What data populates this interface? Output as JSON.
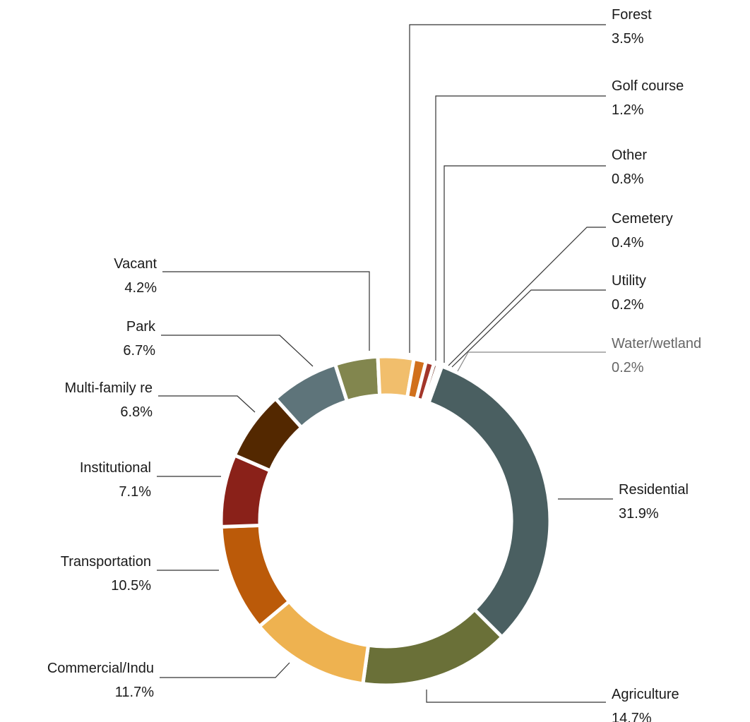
{
  "chart_data": {
    "type": "pie",
    "donut": true,
    "title": "",
    "slices": [
      {
        "label": "Residential",
        "value": 31.9,
        "pct": "31.9%",
        "color": "#4a5f61"
      },
      {
        "label": "Agriculture",
        "value": 14.7,
        "pct": "14.7%",
        "color": "#6a7038"
      },
      {
        "label": "Commercial/Indu",
        "value": 11.7,
        "pct": "11.7%",
        "color": "#eeb250"
      },
      {
        "label": "Transportation",
        "value": 10.5,
        "pct": "10.5%",
        "color": "#bb5a09"
      },
      {
        "label": "Institutional",
        "value": 7.1,
        "pct": "7.1%",
        "color": "#8a2119"
      },
      {
        "label": "Multi-family re",
        "value": 6.8,
        "pct": "6.8%",
        "color": "#532800"
      },
      {
        "label": "Park",
        "value": 6.7,
        "pct": "6.7%",
        "color": "#5e747a"
      },
      {
        "label": "Vacant",
        "value": 4.2,
        "pct": "4.2%",
        "color": "#82864e"
      },
      {
        "label": "Forest",
        "value": 3.5,
        "pct": "3.5%",
        "color": "#f1be6c"
      },
      {
        "label": "Golf course",
        "value": 1.2,
        "pct": "1.2%",
        "color": "#d1701c"
      },
      {
        "label": "Other",
        "value": 0.8,
        "pct": "0.8%",
        "color": "#a3362a"
      },
      {
        "label": "Cemetery",
        "value": 0.4,
        "pct": "0.4%",
        "color": "#6b2a1a"
      },
      {
        "label": "Utility",
        "value": 0.2,
        "pct": "0.2%",
        "color": "#8fa0a2"
      },
      {
        "label": "Water/wetland",
        "value": 0.2,
        "pct": "0.2%",
        "color": "#9da47a"
      }
    ]
  }
}
